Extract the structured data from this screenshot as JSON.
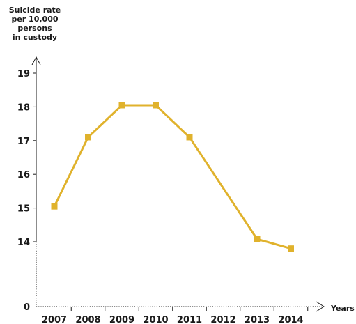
{
  "chart_data": {
    "type": "line",
    "ylabel_lines": [
      "Suicide rate",
      "per 10,000",
      "persons",
      "in custody"
    ],
    "xlabel": "Years",
    "x": [
      "2007",
      "2008",
      "2009",
      "2010",
      "2011",
      "2012",
      "2013",
      "2014"
    ],
    "y_ticks": [
      0,
      14,
      15,
      16,
      17,
      18,
      19
    ],
    "axis_break": true,
    "series": [
      {
        "x": [
          "2007",
          "2008",
          "2009",
          "2010",
          "2011",
          "2013",
          "2014"
        ],
        "values": [
          15.05,
          17.1,
          18.05,
          18.05,
          17.1,
          14.08,
          13.8
        ],
        "color": "#E0B22C"
      }
    ],
    "grid": false,
    "legend": "none"
  }
}
